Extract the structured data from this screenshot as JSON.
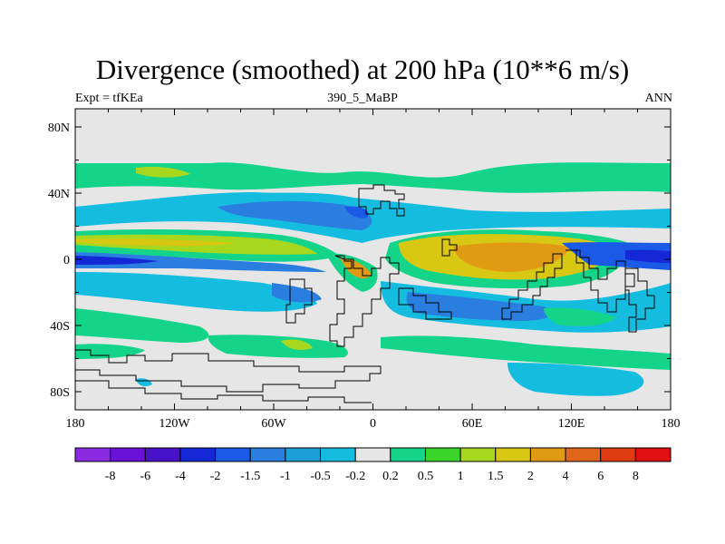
{
  "header": {
    "title": "Divergence (smoothed) at 200 hPa (10**6 m/s)",
    "left_label": "Expt = tfKEa",
    "center_label": "390_5_MaBP",
    "right_label": "ANN"
  },
  "chart_data": {
    "type": "map",
    "subtype": "filled-contour",
    "x_ticks": [
      "180",
      "120W",
      "60W",
      "0",
      "60E",
      "120E",
      "180"
    ],
    "y_ticks": [
      "80N",
      "40N",
      "0",
      "40S",
      "80S"
    ],
    "xlim": [
      -180,
      180
    ],
    "ylim": [
      -90,
      90
    ],
    "colorbar": {
      "levels": [
        "-8",
        "-6",
        "-4",
        "-2",
        "-1.5",
        "-1",
        "-0.5",
        "-0.2",
        "0.2",
        "0.5",
        "1",
        "1.5",
        "2",
        "4",
        "6",
        "8"
      ],
      "colors": [
        "#8a2be2",
        "#6a10d8",
        "#4a12c8",
        "#1428d8",
        "#1a5ae6",
        "#2a7ee0",
        "#1c9ed6",
        "#14bde0",
        "#e6e6e6",
        "#14d48a",
        "#3ad42a",
        "#a8d81e",
        "#d8c814",
        "#e09a14",
        "#e0641a",
        "#e03a10",
        "#e01010"
      ]
    },
    "missing_color": "#e6e6e6",
    "coastline": "paleogeography 390 MaBP (black outline)"
  }
}
